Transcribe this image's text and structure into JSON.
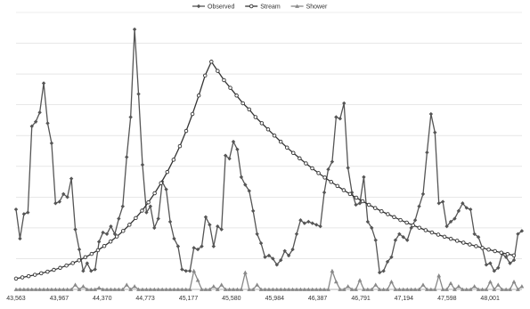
{
  "chart_data": {
    "type": "line",
    "title": "",
    "xlabel": "",
    "ylabel": "",
    "grid": true,
    "legend_position": "top-center",
    "x_ticks": [
      "43,563",
      "43,967",
      "44,370",
      "44,773",
      "45,177",
      "45,580",
      "45,984",
      "46,387",
      "46,791",
      "47,194",
      "47,598",
      "48,001"
    ],
    "x_range": [
      43563,
      48300
    ],
    "y_range": [
      0,
      18
    ],
    "y_gridlines": [
      0,
      2,
      4,
      6,
      8,
      10,
      12,
      14,
      16,
      18
    ],
    "series": [
      {
        "name": "Observed",
        "color": "#555555",
        "marker": "diamond",
        "values": [
          5.2,
          3.3,
          4.9,
          5.0,
          10.6,
          10.9,
          11.5,
          13.4,
          10.8,
          9.5,
          5.6,
          5.7,
          6.2,
          6.0,
          7.2,
          3.9,
          2.6,
          1.2,
          1.7,
          1.2,
          1.3,
          3.1,
          3.7,
          3.6,
          4.1,
          3.6,
          4.6,
          5.4,
          8.6,
          11.2,
          16.9,
          12.7,
          8.1,
          5.0,
          5.4,
          4.0,
          4.6,
          7.0,
          6.5,
          4.4,
          3.3,
          2.8,
          1.3,
          1.2,
          1.2,
          2.7,
          2.6,
          2.8,
          4.7,
          4.2,
          2.8,
          4.1,
          3.9,
          8.7,
          8.5,
          9.6,
          9.1,
          7.3,
          6.8,
          6.4,
          5.1,
          3.6,
          3.0,
          2.1,
          2.2,
          2.0,
          1.6,
          1.9,
          2.5,
          2.2,
          2.6,
          3.6,
          4.5,
          4.3,
          4.4,
          4.3,
          4.2,
          4.1,
          6.3,
          7.8,
          8.3,
          11.2,
          11.1,
          12.1,
          7.9,
          6.3,
          5.5,
          5.6,
          7.3,
          4.4,
          4.0,
          3.2,
          1.1,
          1.2,
          1.8,
          2.1,
          3.2,
          3.6,
          3.4,
          3.2,
          4.0,
          4.5,
          5.4,
          6.2,
          8.9,
          11.4,
          10.2,
          5.6,
          5.7,
          4.1,
          4.4,
          4.6,
          5.1,
          5.6,
          5.3,
          5.2,
          3.6,
          3.4,
          2.7,
          1.6,
          1.7,
          1.2,
          1.4,
          2.3,
          2.1,
          1.7,
          1.9,
          3.6,
          3.8
        ],
        "start": 43563,
        "step": 37
      },
      {
        "name": "Stream",
        "color": "#333333",
        "marker": "circle",
        "values": [
          0.7,
          0.78,
          0.86,
          0.95,
          1.05,
          1.15,
          1.27,
          1.4,
          1.55,
          1.71,
          1.89,
          2.09,
          2.31,
          2.55,
          2.82,
          3.11,
          3.44,
          3.8,
          4.2,
          4.64,
          5.12,
          5.66,
          6.25,
          6.91,
          7.63,
          8.43,
          9.31,
          10.3,
          11.4,
          12.6,
          13.9,
          14.8,
          14.2,
          13.6,
          13.1,
          12.6,
          12.1,
          11.7,
          11.2,
          10.8,
          10.4,
          10.0,
          9.6,
          9.22,
          8.87,
          8.52,
          8.19,
          7.87,
          7.56,
          7.27,
          6.99,
          6.72,
          6.45,
          6.2,
          5.96,
          5.73,
          5.5,
          5.29,
          5.08,
          4.89,
          4.7,
          4.51,
          4.34,
          4.17,
          4.01,
          3.85,
          3.7,
          3.56,
          3.42,
          3.29,
          3.16,
          3.04,
          2.92,
          2.81,
          2.7,
          2.59,
          2.49,
          2.39,
          2.3,
          2.21
        ],
        "start": 43563,
        "step": 59
      },
      {
        "name": "Shower",
        "color": "#888888",
        "marker": "triangle",
        "values": [
          0,
          0,
          0,
          0,
          0,
          0,
          0,
          0,
          0,
          0,
          0,
          0,
          0,
          0,
          0,
          0.3,
          0,
          0.2,
          0,
          0,
          0,
          0.1,
          0,
          0,
          0,
          0,
          0,
          0,
          0.3,
          0,
          0.2,
          0,
          0,
          0,
          0,
          0,
          0,
          0,
          0,
          0,
          0,
          0,
          0,
          0,
          0,
          1.2,
          0.6,
          0,
          0,
          0,
          0.2,
          0,
          0.3,
          0,
          0,
          0,
          0,
          0,
          1.1,
          0,
          0,
          0.3,
          0,
          0,
          0,
          0,
          0,
          0,
          0,
          0,
          0,
          0,
          0,
          0,
          0,
          0,
          0,
          0,
          0,
          0,
          1.2,
          0.5,
          0,
          0,
          0.2,
          0,
          0,
          0.6,
          0,
          0,
          0,
          0.3,
          0,
          0,
          0,
          0.5,
          0,
          0,
          0,
          0,
          0,
          0,
          0,
          0.3,
          0,
          0,
          0,
          0.9,
          0,
          0,
          0.4,
          0,
          0.2,
          0,
          0,
          0,
          0.2,
          0,
          0,
          0,
          0.5,
          0,
          0.3,
          0,
          0,
          0,
          0.5,
          0,
          0.2
        ],
        "start": 43563,
        "step": 37
      }
    ]
  }
}
